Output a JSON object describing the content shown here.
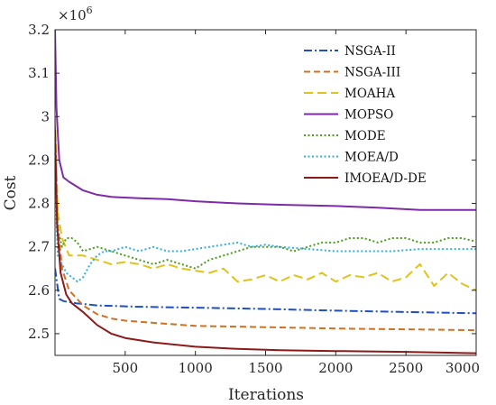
{
  "chart_data": {
    "type": "line",
    "title": "",
    "xlabel": "Iterations",
    "ylabel": "Cost",
    "y_exponent": {
      "base": "×10",
      "power": "6"
    },
    "xlim": [
      0,
      3000
    ],
    "ylim": [
      2.45,
      3.2
    ],
    "x_ticks": [
      "500",
      "1000",
      "1500",
      "2000",
      "2500",
      "3000"
    ],
    "y_ticks": [
      "2.5",
      "2.6",
      "2.7",
      "2.8",
      "2.9",
      "3",
      "3.1",
      "3.2"
    ],
    "grid": false,
    "legend_position": "top-right",
    "series": [
      {
        "name": "NSGA-II",
        "color": "#1f4fc1",
        "dash": "dashdot",
        "x": [
          0,
          30,
          60,
          150,
          300,
          600,
          1000,
          1500,
          2000,
          2500,
          3000
        ],
        "y": [
          2.65,
          2.58,
          2.575,
          2.57,
          2.565,
          2.562,
          2.56,
          2.557,
          2.553,
          2.55,
          2.547
        ]
      },
      {
        "name": "NSGA-III",
        "color": "#d07020",
        "dash": "dashed",
        "x": [
          0,
          20,
          50,
          100,
          200,
          300,
          400,
          500,
          700,
          1000,
          1500,
          2000,
          2500,
          3000
        ],
        "y": [
          2.98,
          2.75,
          2.65,
          2.6,
          2.565,
          2.545,
          2.535,
          2.53,
          2.525,
          2.518,
          2.515,
          2.512,
          2.51,
          2.508
        ]
      },
      {
        "name": "MOAHA",
        "color": "#e0c21a",
        "dash": "longdash",
        "x": [
          0,
          20,
          50,
          100,
          200,
          300,
          400,
          500,
          600,
          700,
          800,
          900,
          1000,
          1100,
          1200,
          1300,
          1400,
          1500,
          1600,
          1700,
          1800,
          1900,
          2000,
          2100,
          2200,
          2300,
          2400,
          2500,
          2600,
          2700,
          2800,
          2900,
          3000
        ],
        "y": [
          3.0,
          2.78,
          2.72,
          2.68,
          2.68,
          2.67,
          2.66,
          2.665,
          2.66,
          2.65,
          2.66,
          2.65,
          2.645,
          2.64,
          2.65,
          2.62,
          2.625,
          2.635,
          2.62,
          2.635,
          2.625,
          2.64,
          2.62,
          2.635,
          2.63,
          2.64,
          2.62,
          2.63,
          2.66,
          2.61,
          2.64,
          2.615,
          2.6
        ]
      },
      {
        "name": "MOPSO",
        "color": "#7f2aa8",
        "dash": "solid",
        "x": [
          0,
          10,
          30,
          60,
          100,
          200,
          300,
          400,
          600,
          800,
          1000,
          1300,
          1600,
          2000,
          2300,
          2600,
          3000
        ],
        "y": [
          3.2,
          3.02,
          2.9,
          2.86,
          2.85,
          2.83,
          2.82,
          2.815,
          2.812,
          2.81,
          2.805,
          2.8,
          2.797,
          2.794,
          2.79,
          2.785,
          2.785
        ]
      },
      {
        "name": "MODE",
        "color": "#4a9e1a",
        "dash": "dotted",
        "x": [
          0,
          20,
          50,
          80,
          120,
          160,
          200,
          300,
          400,
          500,
          600,
          700,
          800,
          900,
          1000,
          1100,
          1200,
          1300,
          1400,
          1500,
          1600,
          1700,
          1800,
          1900,
          2000,
          2100,
          2200,
          2300,
          2400,
          2500,
          2600,
          2700,
          2800,
          2900,
          3000
        ],
        "y": [
          2.88,
          2.74,
          2.7,
          2.72,
          2.72,
          2.71,
          2.69,
          2.7,
          2.69,
          2.68,
          2.67,
          2.66,
          2.67,
          2.66,
          2.65,
          2.67,
          2.68,
          2.69,
          2.7,
          2.7,
          2.7,
          2.69,
          2.7,
          2.71,
          2.71,
          2.72,
          2.72,
          2.71,
          2.72,
          2.72,
          2.71,
          2.71,
          2.72,
          2.72,
          2.712
        ]
      },
      {
        "name": "MOEA/D",
        "color": "#33aee0",
        "dash": "dotted",
        "x": [
          0,
          20,
          50,
          80,
          120,
          160,
          200,
          250,
          300,
          350,
          400,
          500,
          600,
          700,
          800,
          900,
          1000,
          1100,
          1200,
          1300,
          1400,
          1500,
          1600,
          1800,
          2000,
          2200,
          2400,
          2600,
          2800,
          3000
        ],
        "y": [
          2.85,
          2.68,
          2.66,
          2.64,
          2.63,
          2.62,
          2.63,
          2.66,
          2.68,
          2.69,
          2.69,
          2.7,
          2.69,
          2.7,
          2.69,
          2.69,
          2.695,
          2.7,
          2.705,
          2.71,
          2.7,
          2.705,
          2.7,
          2.695,
          2.69,
          2.69,
          2.69,
          2.695,
          2.695,
          2.695
        ]
      },
      {
        "name": "IMOEA/D-DE",
        "color": "#8b1a1a",
        "dash": "solid",
        "x": [
          0,
          15,
          40,
          80,
          120,
          200,
          300,
          400,
          500,
          700,
          1000,
          1300,
          1600,
          2000,
          2500,
          3000
        ],
        "y": [
          2.97,
          2.75,
          2.64,
          2.59,
          2.57,
          2.55,
          2.52,
          2.5,
          2.49,
          2.48,
          2.47,
          2.465,
          2.462,
          2.46,
          2.458,
          2.455
        ]
      }
    ]
  }
}
